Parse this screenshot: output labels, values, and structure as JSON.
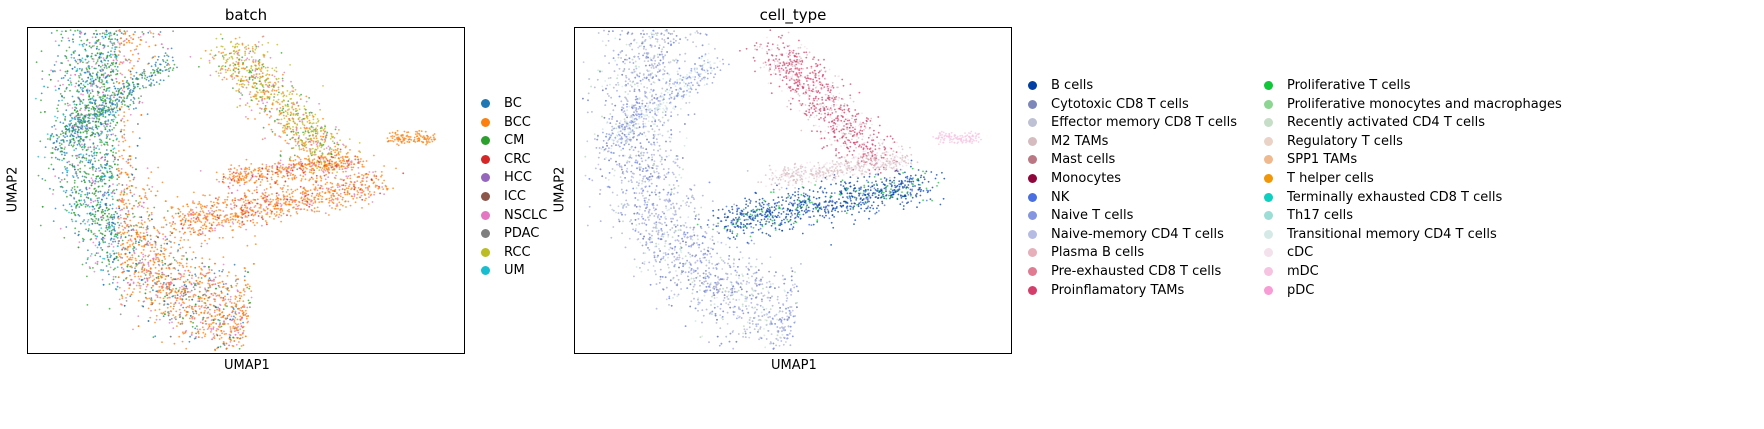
{
  "chart_data": [
    {
      "type": "scatter",
      "title": "batch",
      "xlabel": "UMAP1",
      "ylabel": "UMAP2",
      "grid": false,
      "legend_position": "right",
      "categories": [
        "BC",
        "BCC",
        "CM",
        "CRC",
        "HCC",
        "ICC",
        "NSCLC",
        "PDAC",
        "RCC",
        "UM"
      ],
      "colors": [
        "#1f77b4",
        "#ff7f0e",
        "#2ca02c",
        "#d62728",
        "#9467bd",
        "#8c564b",
        "#e377c2",
        "#7f7f7f",
        "#bcbd22",
        "#17becf"
      ]
    },
    {
      "type": "scatter",
      "title": "cell_type",
      "xlabel": "UMAP1",
      "ylabel": "UMAP2",
      "grid": false,
      "legend_position": "right",
      "categories": [
        "B cells",
        "Cytotoxic CD8 T cells",
        "Effector memory CD8 T cells",
        "M2 TAMs",
        "Mast cells",
        "Monocytes",
        "NK",
        "Naive T cells",
        "Naive-memory CD4 T cells",
        "Plasma B cells",
        "Pre-exhausted CD8 T cells",
        "Proinflamatory TAMs",
        "Proliferative T cells",
        "Proliferative monocytes and macrophages",
        "Recently activated CD4 T cells",
        "Regulatory T cells",
        "SPP1 TAMs",
        "T helper cells",
        "Terminally exhausted CD8 T cells",
        "Th17 cells",
        "Transitional memory CD4 T cells",
        "cDC",
        "mDC",
        "pDC"
      ],
      "colors": [
        "#023fa5",
        "#7d87b9",
        "#bec1d4",
        "#d6bcc0",
        "#bb7784",
        "#8e063b",
        "#4a6fe3",
        "#8595e1",
        "#b5bbe3",
        "#e6afb9",
        "#e07b91",
        "#d33f6a",
        "#11c638",
        "#8dd593",
        "#c6dec7",
        "#ead3c6",
        "#f0b98d",
        "#ef9708",
        "#0fcfc0",
        "#9cded6",
        "#d5eae7",
        "#f3e1eb",
        "#f6c4e1",
        "#f79cd4"
      ]
    }
  ]
}
